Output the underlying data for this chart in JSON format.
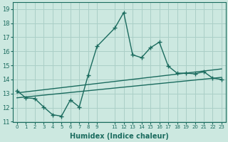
{
  "xlabel": "Humidex (Indice chaleur)",
  "ylabel": "",
  "bg_color": "#cce8e0",
  "grid_color": "#aacfc7",
  "line_color": "#1a6b5e",
  "xlim": [
    -0.5,
    23.5
  ],
  "ylim": [
    11,
    19.5
  ],
  "yticks": [
    11,
    12,
    13,
    14,
    15,
    16,
    17,
    18,
    19
  ],
  "xtick_positions": [
    0,
    1,
    2,
    3,
    4,
    5,
    6,
    7,
    8,
    9,
    11,
    12,
    13,
    14,
    15,
    16,
    17,
    18,
    19,
    20,
    21,
    22,
    23
  ],
  "xtick_labels": [
    "0",
    "1",
    "2",
    "3",
    "4",
    "5",
    "6",
    "7",
    "8",
    "9",
    "11",
    "12",
    "13",
    "14",
    "15",
    "16",
    "17",
    "18",
    "19",
    "20",
    "21",
    "22",
    "23"
  ],
  "line1_x": [
    0,
    1,
    2,
    3,
    4,
    5,
    6,
    7,
    8,
    9,
    11,
    12,
    13,
    14,
    15,
    16,
    17,
    18,
    19,
    20,
    21,
    22,
    23
  ],
  "line1_y": [
    13.2,
    12.7,
    12.65,
    12.05,
    11.5,
    11.4,
    12.55,
    12.05,
    14.3,
    16.35,
    17.65,
    18.75,
    15.75,
    15.55,
    16.25,
    16.65,
    14.95,
    14.45,
    14.45,
    14.4,
    14.55,
    14.1,
    14.0
  ],
  "line2_x": [
    0,
    23
  ],
  "line2_y": [
    12.7,
    14.15
  ],
  "line3_x": [
    0,
    23
  ],
  "line3_y": [
    13.05,
    14.75
  ],
  "marker": "+",
  "markersize": 4.0,
  "markeredgewidth": 1.0,
  "linewidth": 1.0,
  "trend_linewidth": 1.0
}
